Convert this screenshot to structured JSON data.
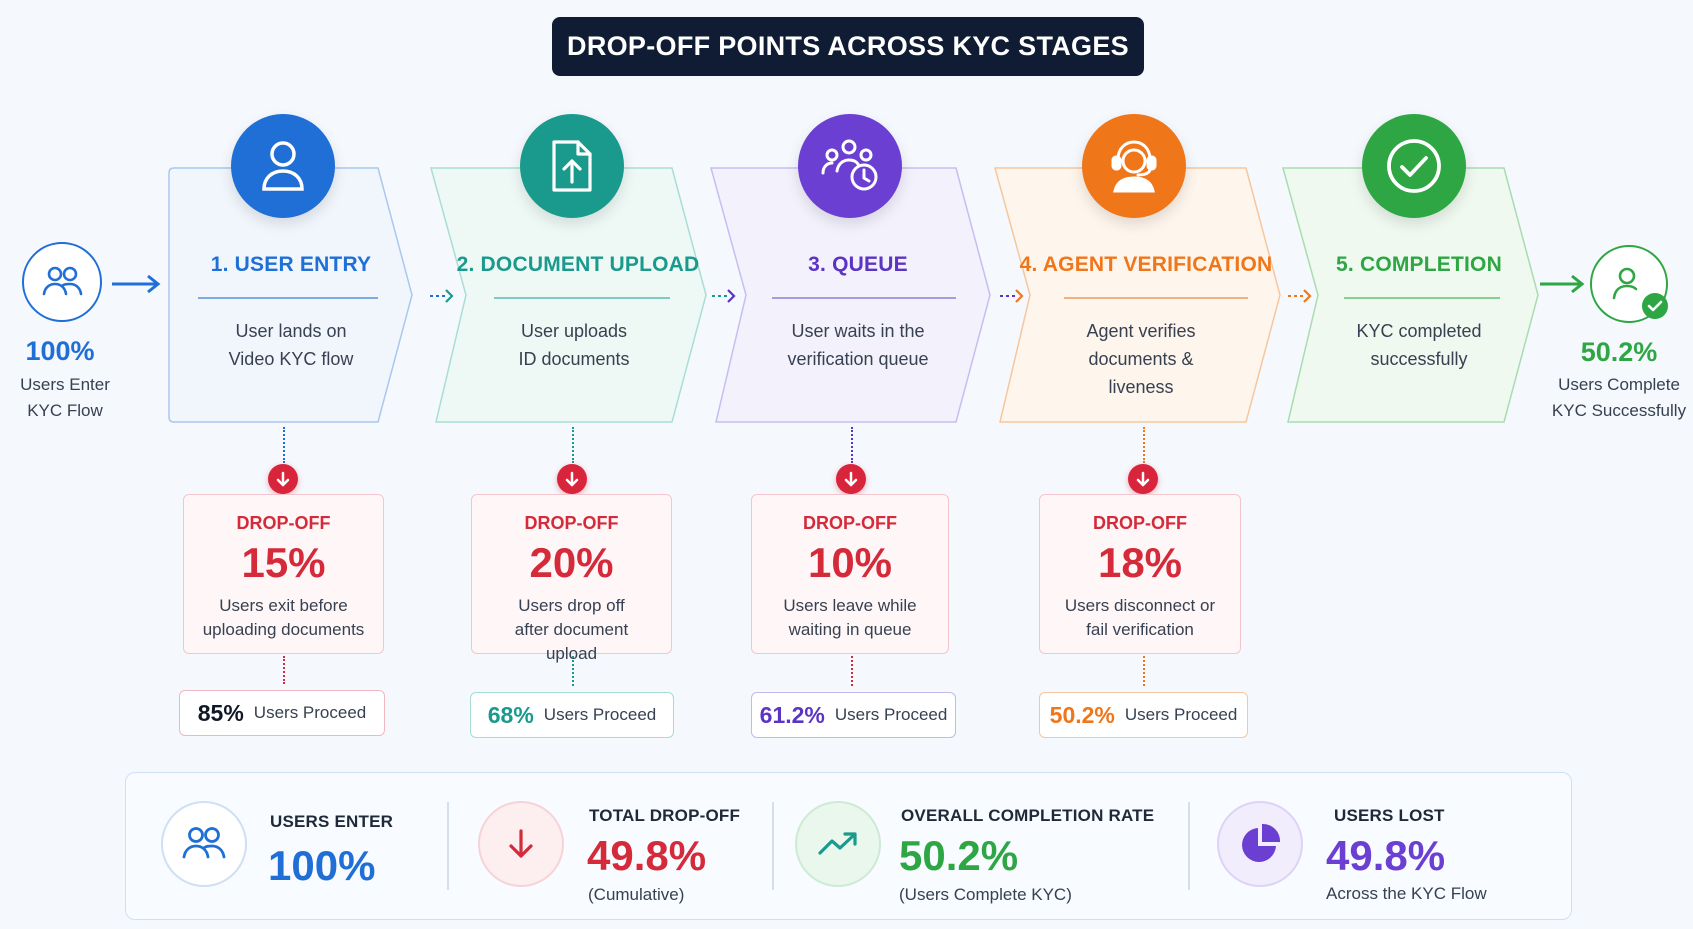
{
  "title": "DROP-OFF POINTS ACROSS KYC STAGES",
  "entry": {
    "percent": "100%",
    "label": "Users Enter\nKYC Flow",
    "icon": "users-icon"
  },
  "exit": {
    "percent": "50.2%",
    "label": "Users Complete\nKYC Successfully",
    "icon": "user-check-icon"
  },
  "stages": [
    {
      "title": "1. USER ENTRY",
      "description": "User lands on\nVideo KYC flow",
      "color": "#1f6fd6",
      "icon": "user-icon"
    },
    {
      "title": "2. DOCUMENT UPLOAD",
      "description": "User uploads\nID documents",
      "color": "#1a9a8c",
      "icon": "document-upload-icon"
    },
    {
      "title": "3. QUEUE",
      "description": "User waits in the\nverification queue",
      "color": "#6b3fd1",
      "icon": "queue-clock-icon"
    },
    {
      "title": "4. AGENT VERIFICATION",
      "description": "Agent verifies\ndocuments &\nliveness",
      "color": "#f0761a",
      "icon": "agent-headset-icon"
    },
    {
      "title": "5. COMPLETION",
      "description": "KYC completed\nsuccessfully",
      "color": "#2ea644",
      "icon": "check-circle-icon"
    }
  ],
  "dropoffs": [
    {
      "label": "DROP-OFF",
      "percent": "15%",
      "description": "Users exit before\nuploading documents",
      "proceed_percent": "85%",
      "proceed_label": "Users Proceed",
      "proceed_color": "#111827"
    },
    {
      "label": "DROP-OFF",
      "percent": "20%",
      "description": "Users drop off\nafter document\nupload",
      "proceed_percent": "68%",
      "proceed_label": "Users Proceed",
      "proceed_color": "#1a9a8c"
    },
    {
      "label": "DROP-OFF",
      "percent": "10%",
      "description": "Users leave while\nwaiting in queue",
      "proceed_percent": "61.2%",
      "proceed_label": "Users Proceed",
      "proceed_color": "#5b34c4"
    },
    {
      "label": "DROP-OFF",
      "percent": "18%",
      "description": "Users disconnect or\nfail verification",
      "proceed_percent": "50.2%",
      "proceed_label": "Users Proceed",
      "proceed_color": "#f0761a"
    }
  ],
  "summary": [
    {
      "label": "USERS ENTER",
      "value": "100%",
      "sub": "",
      "color": "#1f6fd6",
      "icon": "users-icon"
    },
    {
      "label": "TOTAL DROP-OFF",
      "value": "49.8%",
      "sub": "(Cumulative)",
      "color": "#d42a3a",
      "icon": "arrow-down-icon"
    },
    {
      "label": "OVERALL COMPLETION RATE",
      "value": "50.2%",
      "sub": "(Users Complete KYC)",
      "color": "#2ea644",
      "icon": "trend-up-icon"
    },
    {
      "label": "USERS LOST",
      "value": "49.8%",
      "sub": "Across the KYC Flow",
      "color": "#6b3fd1",
      "icon": "pie-chart-icon"
    }
  ]
}
